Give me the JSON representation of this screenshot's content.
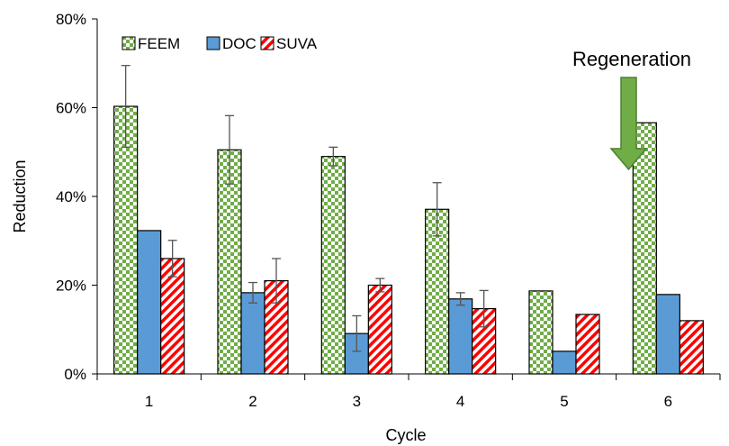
{
  "chart_data": {
    "type": "bar",
    "xlabel": "Cycle",
    "ylabel": "Reduction",
    "ylim": [
      0,
      80
    ],
    "y_unit": "%",
    "y_ticks": [
      "0%",
      "20%",
      "40%",
      "60%",
      "80%"
    ],
    "categories": [
      "1",
      "2",
      "3",
      "4",
      "5",
      "6"
    ],
    "series": [
      {
        "name": "FEEM",
        "pattern": "checkerboard",
        "colors": [
          "#70ad47",
          "#ffffff"
        ],
        "values": [
          60.3,
          50.5,
          49.0,
          37.1,
          18.7,
          56.6
        ],
        "error": [
          9.2,
          7.7,
          2.1,
          6.0,
          null,
          null
        ]
      },
      {
        "name": "DOC",
        "pattern": "solid",
        "colors": [
          "#5b9bd5"
        ],
        "values": [
          32.3,
          18.3,
          9.1,
          16.9,
          5.1,
          17.9
        ],
        "error": [
          null,
          2.3,
          4.0,
          1.4,
          null,
          null
        ]
      },
      {
        "name": "SUVA",
        "pattern": "diagonal-stripes",
        "colors": [
          "#ff0000",
          "#ffffff"
        ],
        "values": [
          26.0,
          21.0,
          20.0,
          14.7,
          13.4,
          12.0
        ],
        "error": [
          4.1,
          5.0,
          1.5,
          4.1,
          null,
          null
        ]
      }
    ],
    "legend_position": "top-left",
    "annotation": {
      "text": "Regeneration",
      "target_category": "6",
      "arrow_color": "#70ad47"
    },
    "grid": false
  }
}
